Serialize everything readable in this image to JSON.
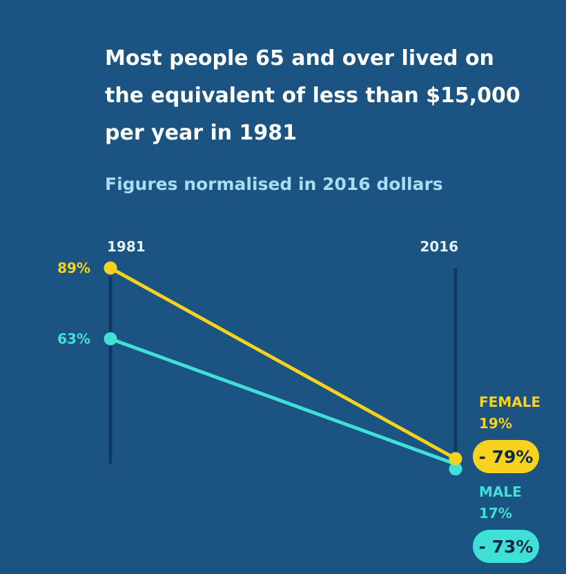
{
  "header": {
    "title": "Most people 65 and over lived on the equivalent of less than $15,000 per year in 1981",
    "subtitle": "Figures normalised in 2016 dollars"
  },
  "colors": {
    "background": "#1b5482",
    "axis_line": "#0d3a63",
    "female": "#f8d21c",
    "male": "#3fe1d6"
  },
  "chart_data": {
    "type": "line",
    "chart_subtype": "slope",
    "x": [
      "1981",
      "2016"
    ],
    "ylim": [
      0,
      100
    ],
    "grid": false,
    "series": [
      {
        "name": "FEMALE",
        "values": [
          89,
          19
        ],
        "start_label": "89%",
        "end_label": "19%",
        "change_label": "- 79%"
      },
      {
        "name": "MALE",
        "values": [
          63,
          17
        ],
        "start_label": "63%",
        "end_label": "17%",
        "change_label": "- 73%"
      }
    ]
  }
}
